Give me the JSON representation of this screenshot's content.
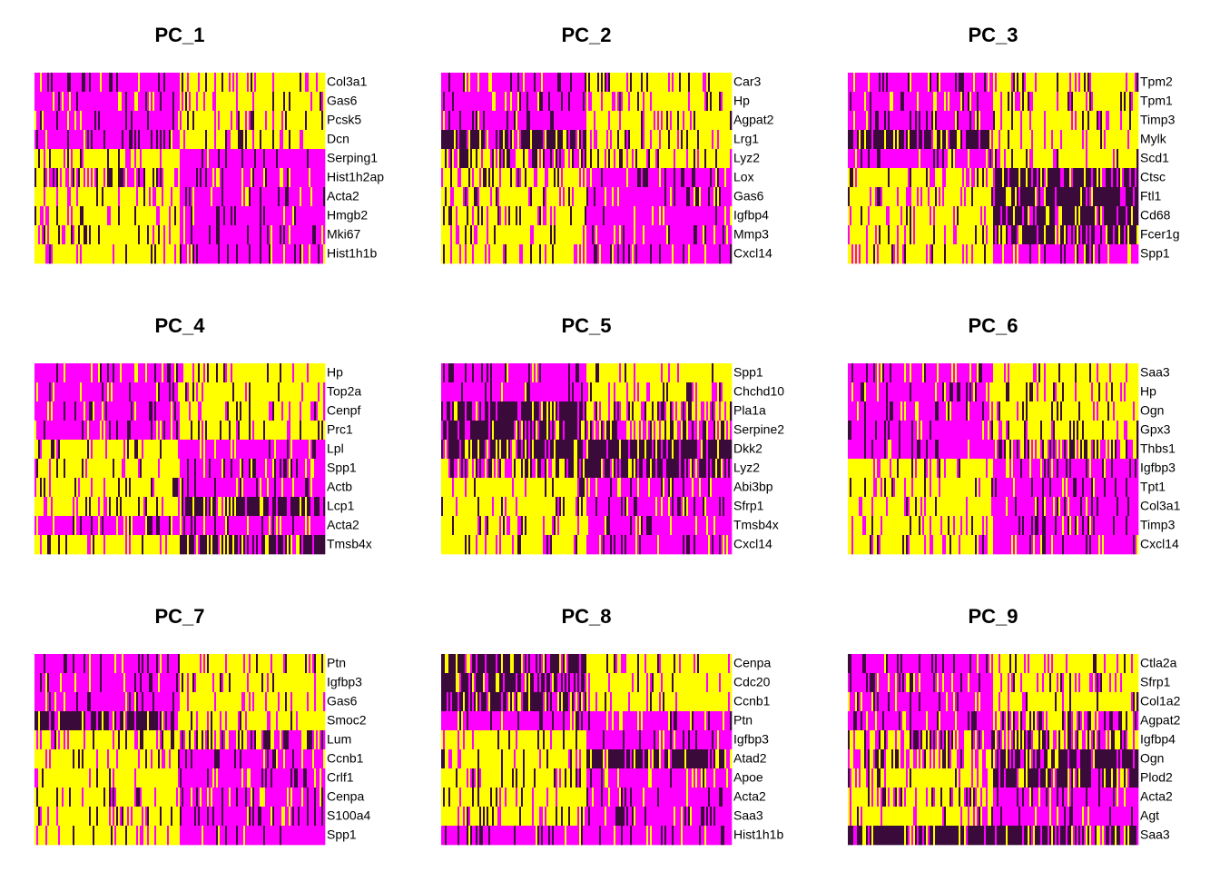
{
  "chart_data": [
    {
      "type": "heatmap",
      "title": "PC_1",
      "genes": [
        "Col3a1",
        "Gas6",
        "Pcsk5",
        "Dcn",
        "Serping1",
        "Hist1h2ap",
        "Acta2",
        "Hmgb2",
        "Mki67",
        "Hist1h1b"
      ],
      "left_group": [
        "magenta",
        "magenta",
        "magenta",
        "magenta",
        "yellow",
        "mixed",
        "yellow",
        "yellow",
        "yellow",
        "yellow"
      ],
      "right_group": [
        "yellow",
        "yellow",
        "yellow",
        "yellow",
        "magenta",
        "magenta",
        "magenta",
        "magenta",
        "magenta",
        "magenta"
      ],
      "split_fraction": 0.5
    },
    {
      "type": "heatmap",
      "title": "PC_2",
      "genes": [
        "Car3",
        "Hp",
        "Agpat2",
        "Lrg1",
        "Lyz2",
        "Lox",
        "Gas6",
        "Igfbp4",
        "Mmp3",
        "Cxcl14"
      ],
      "left_group": [
        "magenta",
        "magenta",
        "magenta",
        "dark",
        "mixed",
        "yellow",
        "yellow",
        "yellow",
        "yellow",
        "yellow"
      ],
      "right_group": [
        "yellow",
        "yellow",
        "yellow",
        "yellow",
        "yellow",
        "magenta",
        "magenta",
        "magenta",
        "magenta",
        "magenta"
      ],
      "split_fraction": 0.5
    },
    {
      "type": "heatmap",
      "title": "PC_3",
      "genes": [
        "Tpm2",
        "Tpm1",
        "Timp3",
        "Mylk",
        "Scd1",
        "Ctsc",
        "Ftl1",
        "Cd68",
        "Fcer1g",
        "Spp1"
      ],
      "left_group": [
        "magenta",
        "magenta",
        "magenta",
        "dark",
        "magenta",
        "yellow",
        "yellow",
        "yellow",
        "yellow",
        "yellow"
      ],
      "right_group": [
        "yellow",
        "yellow",
        "yellow",
        "yellow",
        "yellow",
        "dark",
        "dark",
        "dark",
        "dark",
        "magenta"
      ],
      "split_fraction": 0.5
    },
    {
      "type": "heatmap",
      "title": "PC_4",
      "genes": [
        "Hp",
        "Top2a",
        "Cenpf",
        "Prc1",
        "Lpl",
        "Spp1",
        "Actb",
        "Lcp1",
        "Acta2",
        "Tmsb4x"
      ],
      "left_group": [
        "magenta",
        "magenta",
        "magenta",
        "magenta",
        "yellow",
        "yellow",
        "yellow",
        "yellow",
        "magenta",
        "yellow"
      ],
      "right_group": [
        "yellow",
        "yellow",
        "yellow",
        "yellow",
        "magenta",
        "magenta",
        "magenta",
        "dark",
        "magenta",
        "dark"
      ],
      "split_fraction": 0.5
    },
    {
      "type": "heatmap",
      "title": "PC_5",
      "genes": [
        "Spp1",
        "Chchd10",
        "Pla1a",
        "Serpine2",
        "Dkk2",
        "Lyz2",
        "Abi3bp",
        "Sfrp1",
        "Tmsb4x",
        "Cxcl14"
      ],
      "left_group": [
        "magenta",
        "magenta",
        "dark",
        "dark",
        "dark",
        "mixed",
        "yellow",
        "yellow",
        "yellow",
        "yellow"
      ],
      "right_group": [
        "yellow",
        "yellow",
        "mixed",
        "mixed",
        "dark",
        "dark",
        "magenta",
        "magenta",
        "magenta",
        "magenta"
      ],
      "split_fraction": 0.5
    },
    {
      "type": "heatmap",
      "title": "PC_6",
      "genes": [
        "Saa3",
        "Hp",
        "Ogn",
        "Gpx3",
        "Thbs1",
        "Igfbp3",
        "Tpt1",
        "Col3a1",
        "Timp3",
        "Cxcl14"
      ],
      "left_group": [
        "magenta",
        "magenta",
        "magenta",
        "magenta",
        "magenta",
        "yellow",
        "yellow",
        "yellow",
        "yellow",
        "yellow"
      ],
      "right_group": [
        "yellow",
        "yellow",
        "yellow",
        "yellow",
        "mixed",
        "magenta",
        "magenta",
        "magenta",
        "magenta",
        "magenta"
      ],
      "split_fraction": 0.5
    },
    {
      "type": "heatmap",
      "title": "PC_7",
      "genes": [
        "Ptn",
        "Igfbp3",
        "Gas6",
        "Smoc2",
        "Lum",
        "Ccnb1",
        "Crlf1",
        "Cenpa",
        "S100a4",
        "Spp1"
      ],
      "left_group": [
        "magenta",
        "magenta",
        "magenta",
        "dark",
        "yellow",
        "yellow",
        "yellow",
        "yellow",
        "yellow",
        "yellow"
      ],
      "right_group": [
        "yellow",
        "yellow",
        "yellow",
        "yellow",
        "mixed",
        "magenta",
        "magenta",
        "magenta",
        "magenta",
        "magenta"
      ],
      "split_fraction": 0.5
    },
    {
      "type": "heatmap",
      "title": "PC_8",
      "genes": [
        "Cenpa",
        "Cdc20",
        "Ccnb1",
        "Ptn",
        "Igfbp3",
        "Atad2",
        "Apoe",
        "Acta2",
        "Saa3",
        "Hist1h1b"
      ],
      "left_group": [
        "dark",
        "dark",
        "dark",
        "magenta",
        "yellow",
        "yellow",
        "yellow",
        "yellow",
        "yellow",
        "magenta"
      ],
      "right_group": [
        "yellow",
        "yellow",
        "yellow",
        "magenta",
        "magenta",
        "dark",
        "magenta",
        "magenta",
        "magenta",
        "magenta"
      ],
      "split_fraction": 0.5
    },
    {
      "type": "heatmap",
      "title": "PC_9",
      "genes": [
        "Ctla2a",
        "Sfrp1",
        "Col1a2",
        "Agpat2",
        "Igfbp4",
        "Ogn",
        "Plod2",
        "Acta2",
        "Agt",
        "Saa3"
      ],
      "left_group": [
        "magenta",
        "magenta",
        "magenta",
        "magenta",
        "mixed",
        "mixed",
        "yellow",
        "yellow",
        "yellow",
        "dark"
      ],
      "right_group": [
        "yellow",
        "yellow",
        "yellow",
        "mixed",
        "mixed",
        "dark",
        "dark",
        "magenta",
        "magenta",
        "dark"
      ],
      "split_fraction": 0.5
    }
  ],
  "colors": {
    "low": "#ff00ff",
    "mid": "#000000",
    "high": "#ffff00",
    "dark": "#3a0a3a",
    "text": "#000000"
  }
}
